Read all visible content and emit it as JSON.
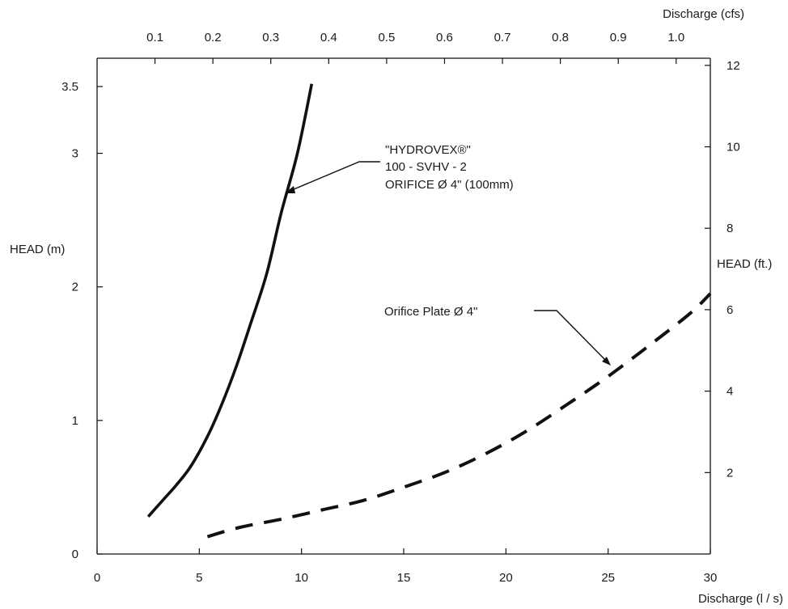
{
  "chart_data": {
    "type": "line",
    "title": "",
    "grid": false,
    "legend": "none",
    "xlabel": "Discharge (l / s)",
    "x2label": "Discharge (cfs)",
    "ylabel": "HEAD (m)",
    "y2label": "HEAD (ft.)",
    "xlim": [
      0,
      30
    ],
    "ylim": [
      0,
      3.5
    ],
    "x2lim": [
      0,
      1.059
    ],
    "y2lim": [
      0,
      11.48
    ],
    "x_ticks": [
      {
        "value": 0,
        "label": "0"
      },
      {
        "value": 5,
        "label": "5"
      },
      {
        "value": 10,
        "label": "10"
      },
      {
        "value": 15,
        "label": "15"
      },
      {
        "value": 20,
        "label": "20"
      },
      {
        "value": 25,
        "label": "25"
      },
      {
        "value": 30,
        "label": "30"
      }
    ],
    "x2_ticks": [
      {
        "value": 0.1,
        "label": "0.1"
      },
      {
        "value": 0.2,
        "label": "0.2"
      },
      {
        "value": 0.3,
        "label": "0.3"
      },
      {
        "value": 0.4,
        "label": "0.4"
      },
      {
        "value": 0.5,
        "label": "0.5"
      },
      {
        "value": 0.6,
        "label": "0.6"
      },
      {
        "value": 0.7,
        "label": "0.7"
      },
      {
        "value": 0.8,
        "label": "0.8"
      },
      {
        "value": 0.9,
        "label": "0.9"
      },
      {
        "value": 1.0,
        "label": "1.0"
      }
    ],
    "y_ticks": [
      {
        "value": 0,
        "label": "0"
      },
      {
        "value": 1,
        "label": "1"
      },
      {
        "value": 2,
        "label": "2"
      },
      {
        "value": 3,
        "label": "3"
      },
      {
        "value": 3.5,
        "label": "3.5"
      }
    ],
    "y2_ticks": [
      {
        "value": 2,
        "label": "2"
      },
      {
        "value": 4,
        "label": "4"
      },
      {
        "value": 6,
        "label": "6"
      },
      {
        "value": 8,
        "label": "8"
      },
      {
        "value": 10,
        "label": "10"
      },
      {
        "value": 12,
        "label": "12"
      }
    ],
    "series": [
      {
        "style": "solid",
        "color": "#111111",
        "x": [
          2.5,
          3.2,
          3.9,
          4.6,
          5.4,
          6.1,
          6.8,
          7.5,
          8.3,
          9.0,
          9.8,
          10.5
        ],
        "y": [
          0.28,
          0.4,
          0.52,
          0.66,
          0.88,
          1.12,
          1.4,
          1.72,
          2.1,
          2.55,
          3.0,
          3.52
        ]
      },
      {
        "style": "dashed",
        "color": "#111111",
        "x": [
          5.4,
          7.0,
          9.0,
          11.0,
          13.0,
          15.0,
          17.0,
          19.0,
          21.0,
          23.0,
          25.0,
          27.0,
          29.0,
          30.0
        ],
        "y": [
          0.13,
          0.2,
          0.26,
          0.33,
          0.4,
          0.5,
          0.61,
          0.75,
          0.92,
          1.12,
          1.33,
          1.56,
          1.8,
          1.95
        ]
      }
    ],
    "annotations": [
      {
        "lines": [
          "\"HYDROVEX®\"",
          "100 - SVHV - 2",
          "ORIFICE Ø 4\" (100mm)"
        ],
        "points_to": [
          9.3,
          2.7
        ]
      },
      {
        "lines": [
          "Orifice Plate Ø 4\""
        ],
        "points_to": [
          25.5,
          1.42
        ]
      }
    ]
  }
}
